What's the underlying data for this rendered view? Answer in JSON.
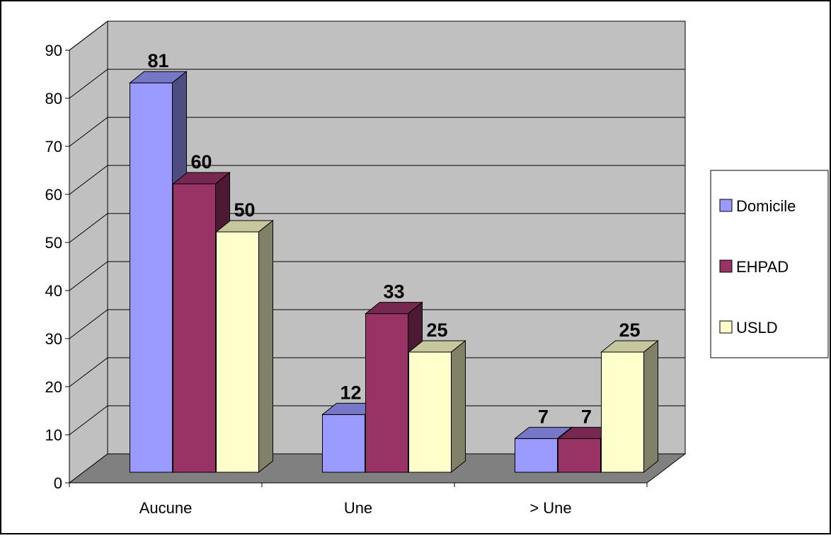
{
  "chart_data": {
    "type": "bar",
    "title": "",
    "xlabel": "",
    "ylabel": "",
    "categories": [
      "Aucune",
      "Une",
      "> Une"
    ],
    "series": [
      {
        "name": "Domicile",
        "values": [
          81,
          12,
          7
        ]
      },
      {
        "name": "EHPAD",
        "values": [
          60,
          33,
          7
        ]
      },
      {
        "name": "USLD",
        "values": [
          50,
          25,
          25
        ]
      }
    ],
    "ylim": [
      0,
      90
    ],
    "yticks": [
      "0",
      "10",
      "20",
      "30",
      "40",
      "50",
      "60",
      "70",
      "80",
      "90"
    ],
    "data_labels": [
      [
        "81",
        "12",
        "7"
      ],
      [
        "60",
        "33",
        "7"
      ],
      [
        "50",
        "25",
        "25"
      ]
    ],
    "grid": true,
    "legend_position": "right",
    "style": "3d-clustered-column"
  },
  "colors": {
    "series": [
      "#9999ff",
      "#993366",
      "#ffffcc"
    ],
    "wall": "#c0c0c0",
    "floor": "#808080",
    "gridline": "#000000"
  }
}
